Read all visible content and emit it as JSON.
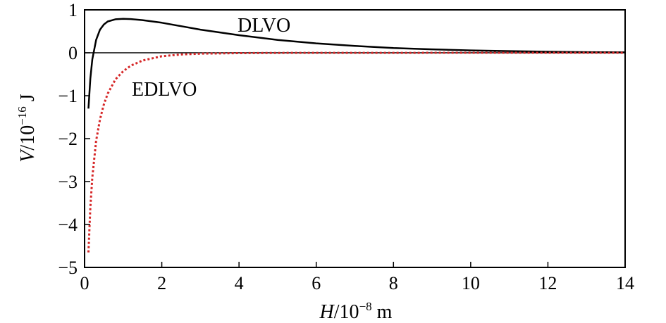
{
  "chart_data": {
    "type": "line",
    "xlabel": {
      "italic": "H",
      "rest": "/10",
      "exp": "−8",
      "unit": " m"
    },
    "ylabel": {
      "italic": "V",
      "rest": "/10",
      "exp": "−16",
      "unit": " J"
    },
    "xlim": [
      0,
      14
    ],
    "ylim": [
      -5,
      1
    ],
    "x_ticks": [
      0,
      2,
      4,
      6,
      8,
      10,
      12,
      14
    ],
    "x_tick_labels": [
      "0",
      "2",
      "4",
      "6",
      "8",
      "10",
      "12",
      "14"
    ],
    "y_ticks": [
      1,
      0,
      -1,
      -2,
      -3,
      -4,
      -5
    ],
    "y_tick_labels": [
      "1",
      "0",
      "−1",
      "−2",
      "−3",
      "−4",
      "−5"
    ],
    "grid": false,
    "zero_line": true,
    "series": [
      {
        "name": "DLVO",
        "color": "#000000",
        "style": "solid",
        "x": [
          0.1,
          0.15,
          0.2,
          0.3,
          0.4,
          0.5,
          0.6,
          0.8,
          1.0,
          1.2,
          1.5,
          2,
          2.5,
          3,
          4,
          5,
          6,
          7,
          8,
          9,
          10,
          11,
          12,
          13,
          14
        ],
        "y": [
          -1.3,
          -0.6,
          -0.15,
          0.3,
          0.54,
          0.66,
          0.73,
          0.78,
          0.79,
          0.785,
          0.76,
          0.7,
          0.62,
          0.54,
          0.41,
          0.3,
          0.22,
          0.16,
          0.11,
          0.08,
          0.055,
          0.04,
          0.025,
          0.015,
          0.01
        ]
      },
      {
        "name": "EDLVO",
        "color": "#d62728",
        "style": "dotted",
        "x": [
          0.1,
          0.15,
          0.2,
          0.3,
          0.4,
          0.5,
          0.6,
          0.8,
          1.0,
          1.2,
          1.5,
          2,
          2.5,
          3,
          4,
          5,
          6,
          8,
          10,
          12,
          14
        ],
        "y": [
          -4.65,
          -3.6,
          -2.9,
          -2.05,
          -1.55,
          -1.2,
          -0.95,
          -0.62,
          -0.43,
          -0.3,
          -0.18,
          -0.08,
          -0.04,
          -0.02,
          -0.008,
          -0.004,
          -0.002,
          -0.001,
          0,
          0,
          0
        ]
      }
    ]
  }
}
